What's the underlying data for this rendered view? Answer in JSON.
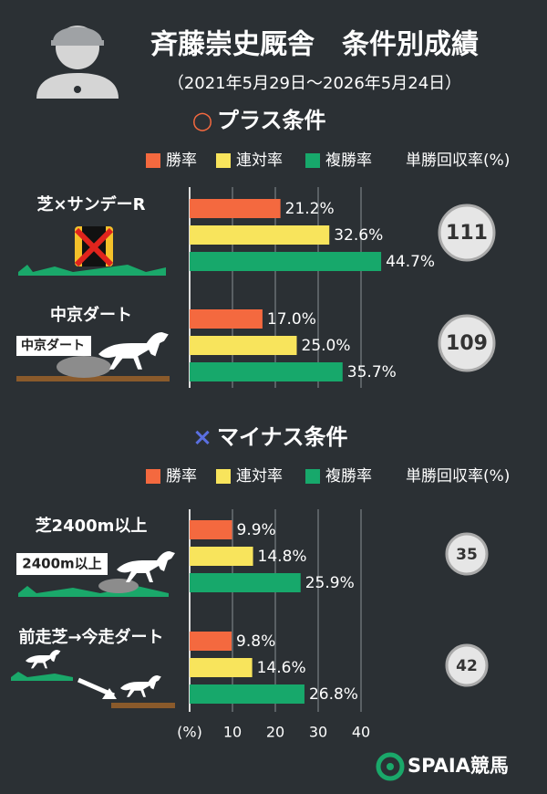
{
  "chart_data": {
    "type": "bar",
    "title": "斉藤崇史厩舎　条件別成績",
    "subtitle": "（2021年5月29日～2026年5月24日）",
    "series": [
      {
        "name": "勝率",
        "color": "#f4693f"
      },
      {
        "name": "連対率",
        "color": "#f8e45c"
      },
      {
        "name": "複勝率",
        "color": "#17a86b"
      }
    ],
    "recovery_label": "単勝回収率(%)",
    "sections": [
      {
        "marker": "○",
        "marker_color": "#f4693f",
        "heading": "プラス条件",
        "groups": [
          {
            "label": "芝×サンデーR",
            "values": [
              21.2,
              32.6,
              44.7
            ],
            "value_labels": [
              "21.2%",
              "32.6%",
              "44.7%"
            ],
            "recovery": 111
          },
          {
            "label": "中京ダート",
            "tag": "中京ダート",
            "values": [
              17.0,
              25.0,
              35.7
            ],
            "value_labels": [
              "17.0%",
              "25.0%",
              "35.7%"
            ],
            "recovery": 109
          }
        ]
      },
      {
        "marker": "×",
        "marker_color": "#5a6fe0",
        "heading": "マイナス条件",
        "groups": [
          {
            "label": "芝2400m以上",
            "tag": "2400m以上",
            "values": [
              9.9,
              14.8,
              25.9
            ],
            "value_labels": [
              "9.9%",
              "14.8%",
              "25.9%"
            ],
            "recovery": 35
          },
          {
            "label": "前走芝→今走ダート",
            "values": [
              9.8,
              14.6,
              26.8
            ],
            "value_labels": [
              "9.8%",
              "14.6%",
              "26.8%"
            ],
            "recovery": 42
          }
        ]
      }
    ],
    "x_unit": "(%)",
    "xlim": [
      0,
      40
    ],
    "xticks": [
      10,
      20,
      30,
      40
    ],
    "grid": true
  },
  "logo": "SPAIA競馬"
}
